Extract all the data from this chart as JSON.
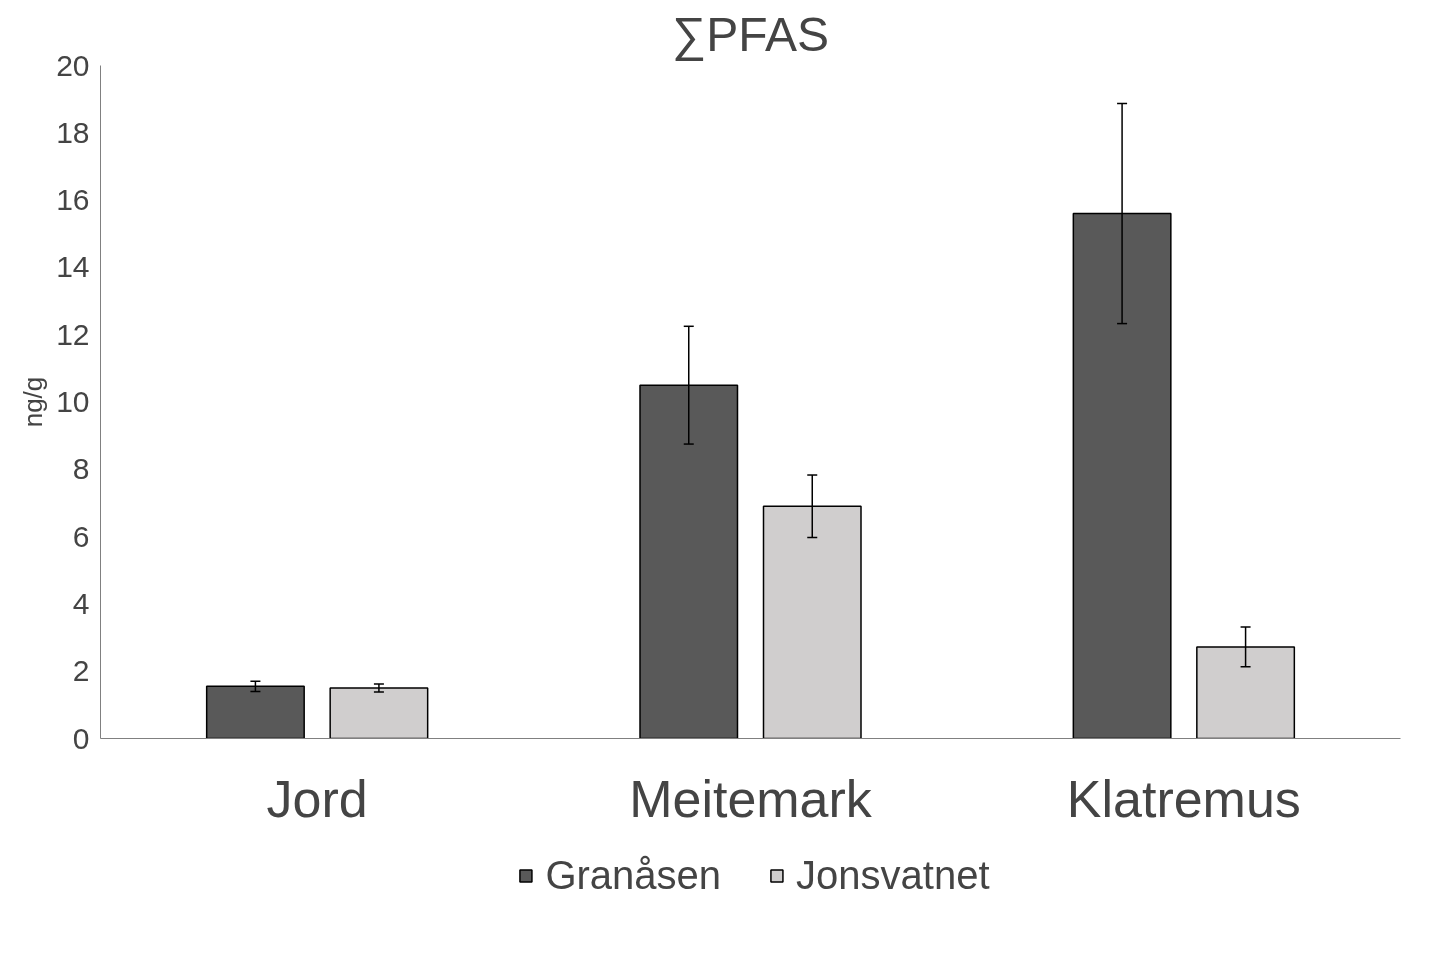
{
  "chart_data": {
    "type": "bar",
    "title": "∑PFAS",
    "ylabel": "ng/g",
    "categories": [
      "Jord",
      "Meitemark",
      "Klatremus"
    ],
    "series": [
      {
        "name": "Granåsen",
        "color": "#595959",
        "values": [
          1.55,
          10.5,
          15.6
        ],
        "errors": [
          0.15,
          1.75,
          3.27
        ]
      },
      {
        "name": "Jonsvatnet",
        "color": "#d0cece",
        "values": [
          1.5,
          6.9,
          2.72
        ],
        "errors": [
          0.12,
          0.93,
          0.59
        ]
      }
    ],
    "ylim": [
      0,
      20
    ],
    "yticks": [
      0,
      2,
      4,
      6,
      8,
      10,
      12,
      14,
      16,
      18,
      20
    ],
    "grid": false,
    "legend": "bottom"
  }
}
